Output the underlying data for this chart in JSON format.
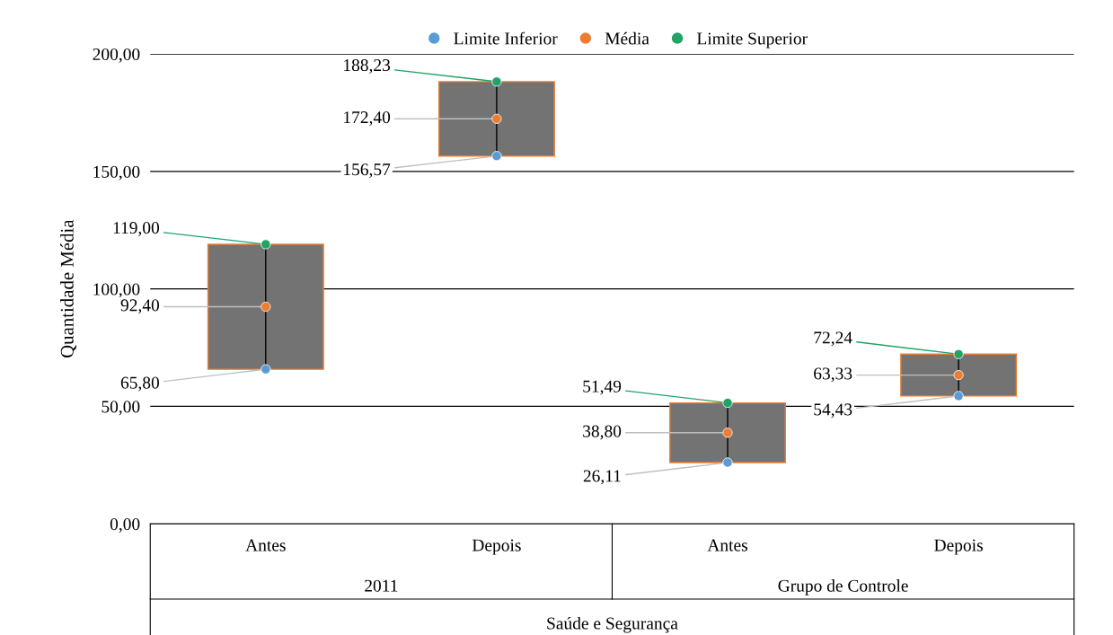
{
  "chart_data": {
    "type": "bar",
    "categories": [
      "Antes",
      "Depois",
      "Antes",
      "Depois"
    ],
    "ylabel": "Quantidade Média",
    "xlabel": "Saúde e Segurança",
    "annotations": [
      "2011",
      "Grupo de Controle"
    ],
    "ylim": [
      0,
      200
    ],
    "yticks": [
      {
        "value": 0,
        "label": "0,00"
      },
      {
        "value": 50,
        "label": "50,00"
      },
      {
        "value": 100,
        "label": "100,00"
      },
      {
        "value": 150,
        "label": "150,00"
      },
      {
        "value": 200,
        "label": "200,00"
      }
    ],
    "grid": "y",
    "legend": "top",
    "marker": "circle",
    "series": [
      {
        "color": "#737373",
        "base": [
          65.8,
          156.57,
          26.11,
          54.43
        ],
        "values": [
          53.2,
          31.66,
          25.38,
          17.81
        ]
      },
      {
        "type": "scatter",
        "name": "Limite Inferior",
        "color": "#5b9bd5",
        "values": [
          65.8,
          156.57,
          26.11,
          54.43
        ],
        "value_labels": [
          "65,80",
          "156,57",
          "26,11",
          "54,43"
        ]
      },
      {
        "type": "scatter",
        "name": "Média",
        "color": "#ed7d31",
        "values": [
          92.4,
          172.4,
          38.8,
          63.33
        ],
        "value_labels": [
          "92,40",
          "172,40",
          "38,80",
          "63,33"
        ]
      },
      {
        "type": "scatter",
        "name": "Limite Superior",
        "color": "#21a366",
        "values": [
          119.0,
          188.23,
          51.49,
          72.24
        ],
        "value_labels": [
          "119,00",
          "188,23",
          "51,49",
          "72,24"
        ]
      }
    ]
  }
}
